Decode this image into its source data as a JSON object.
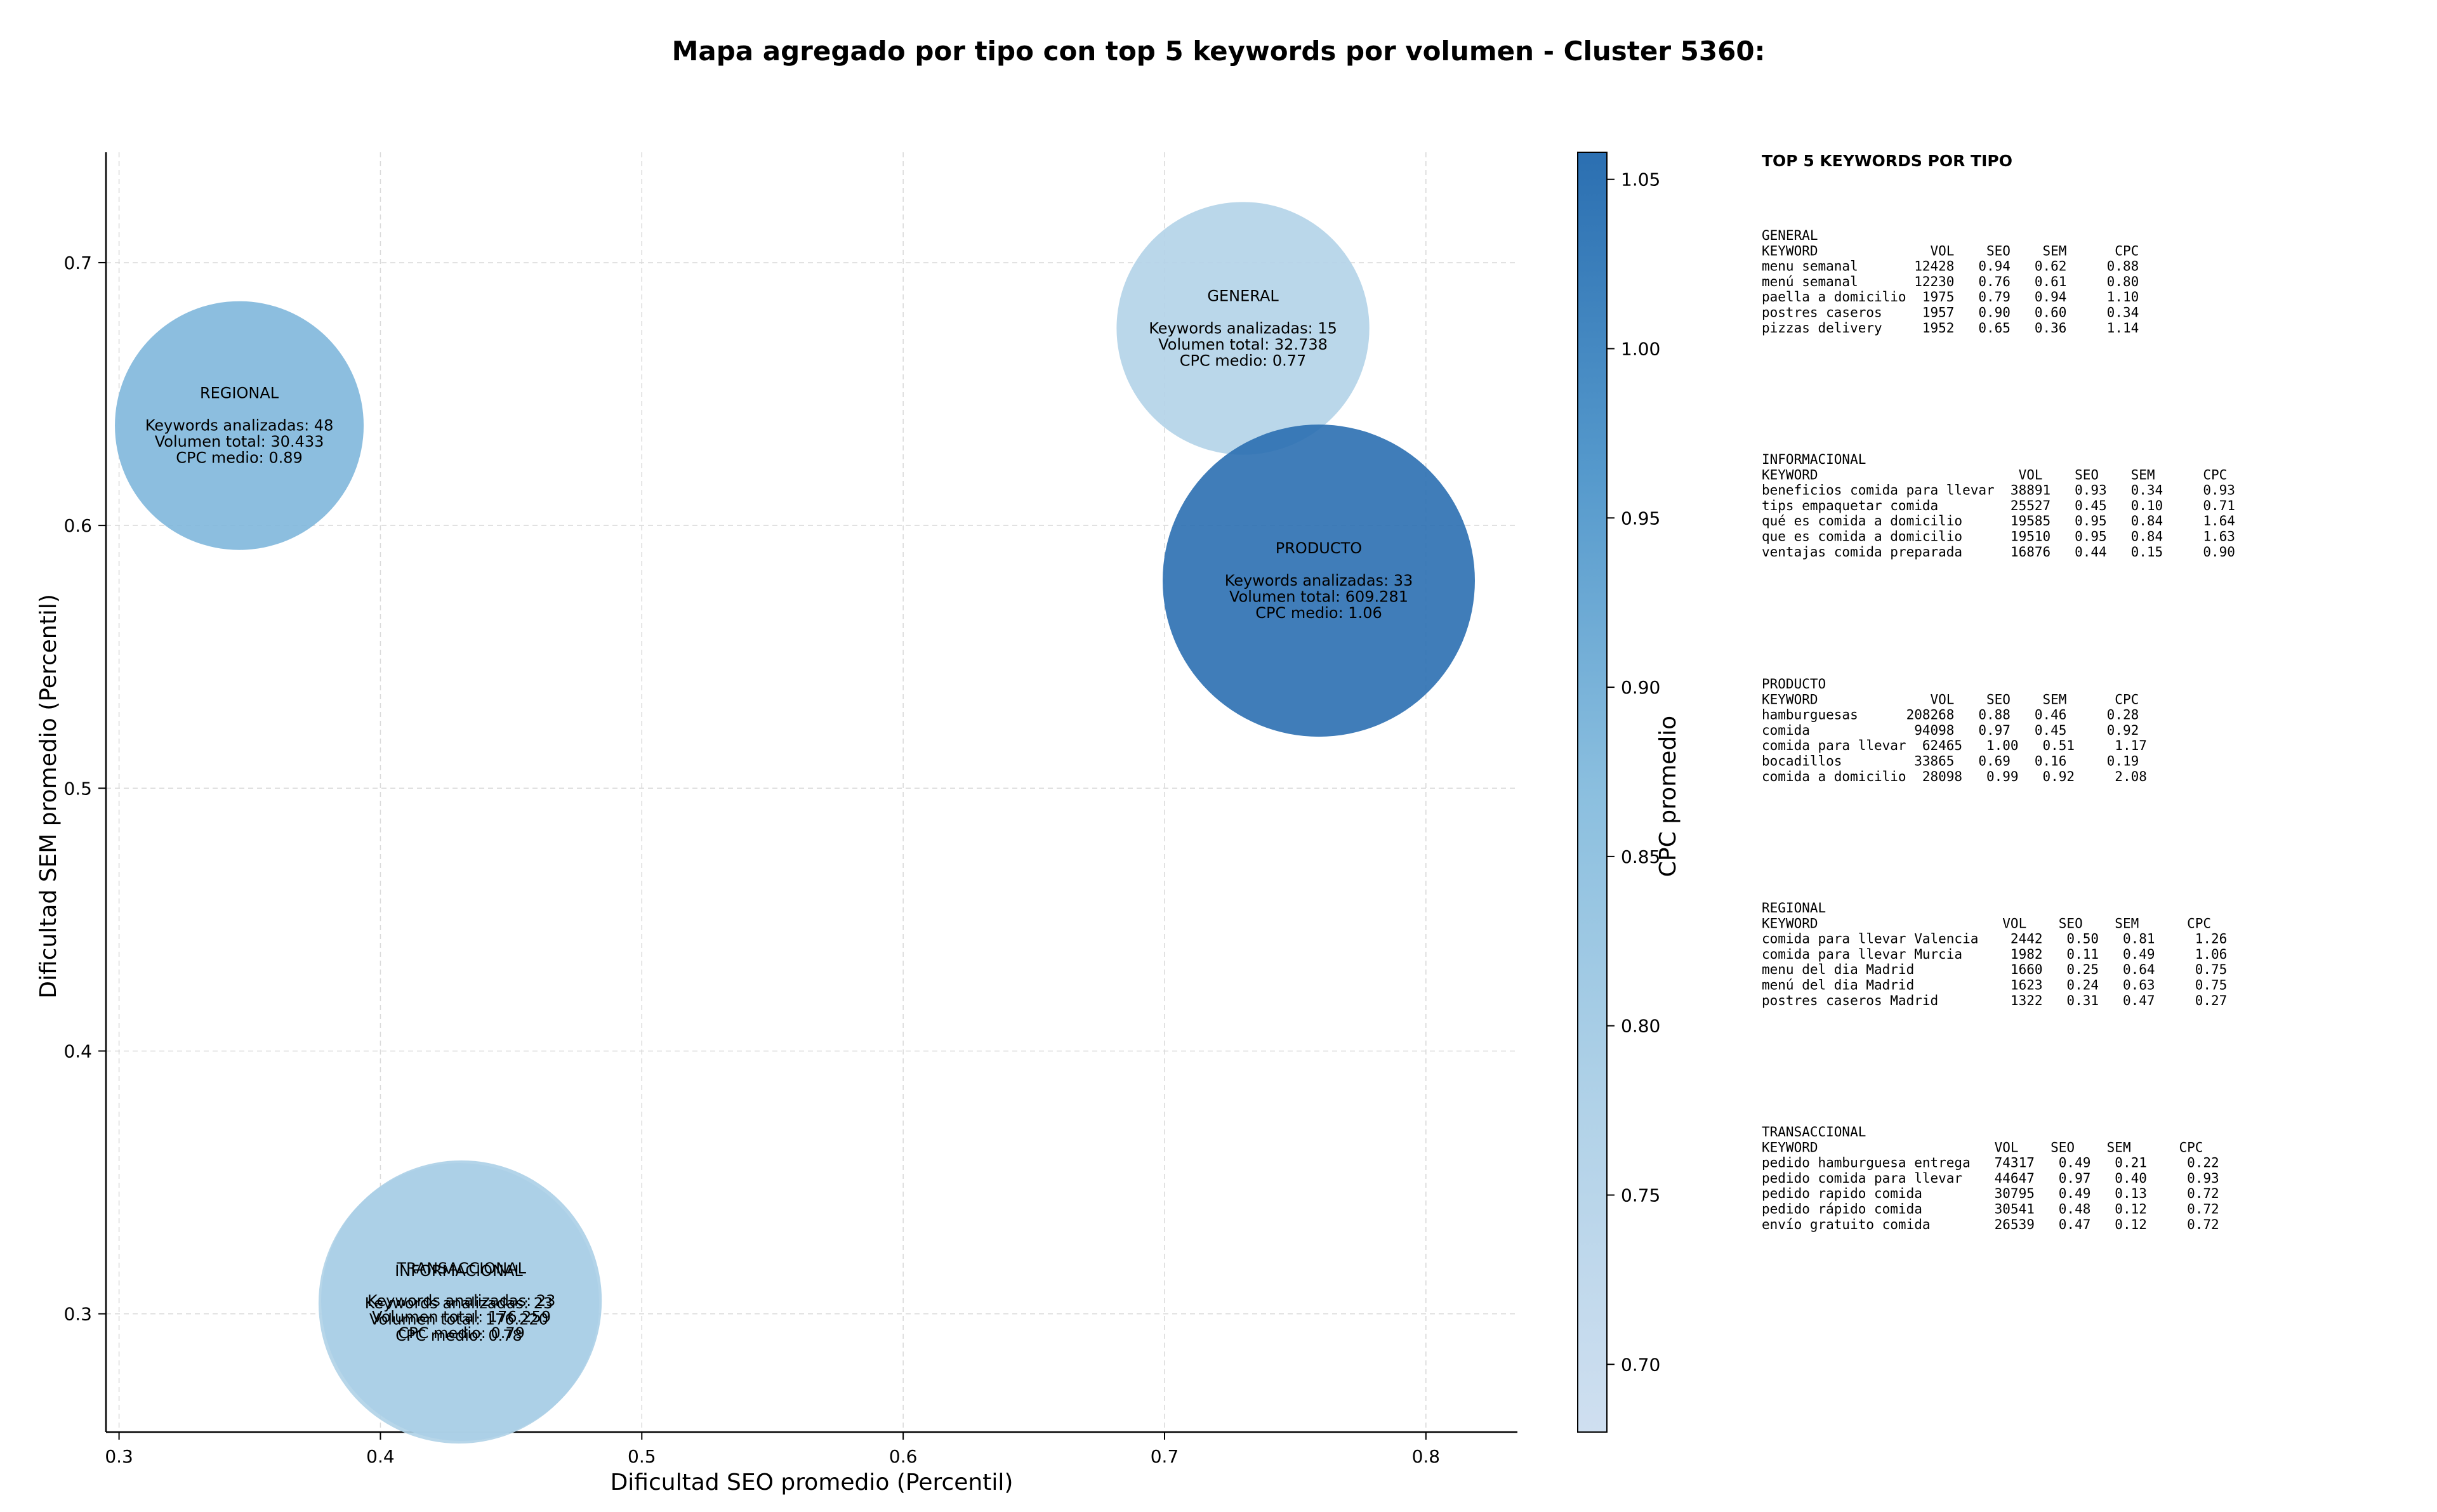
{
  "chart_data": {
    "type": "scatter",
    "title": "Mapa agregado por tipo con top 5 keywords por volumen - Cluster 5360:",
    "xlabel": "Dificultad SEO promedio (Percentil)",
    "ylabel": "Dificultad SEM promedio (Percentil)",
    "xlim": [
      0.295,
      0.835
    ],
    "ylim": [
      0.255,
      0.742
    ],
    "xticks": [
      0.3,
      0.4,
      0.5,
      0.6,
      0.7,
      0.8
    ],
    "xtick_labels": [
      "0.3",
      "0.4",
      "0.5",
      "0.6",
      "0.7",
      "0.8"
    ],
    "yticks": [
      0.3,
      0.4,
      0.5,
      0.6,
      0.7
    ],
    "ytick_labels": [
      "0.3",
      "0.4",
      "0.5",
      "0.6",
      "0.7"
    ],
    "grid": true,
    "colorbar": {
      "label": "CPC promedio",
      "range": [
        0.68,
        1.058
      ],
      "ticks": [
        0.7,
        0.75,
        0.8,
        0.85,
        0.9,
        0.95,
        1.0,
        1.05
      ],
      "tick_labels": [
        "0.70",
        "0.75",
        "0.80",
        "0.85",
        "0.90",
        "0.95",
        "1.00",
        "1.05"
      ]
    },
    "points": [
      {
        "name": "REGIONAL",
        "x": 0.346,
        "y": 0.638,
        "keywords": 48,
        "volume": 30433,
        "cpc": 0.89,
        "label_lines": [
          "REGIONAL",
          "",
          "Keywords analizadas: 48",
          "Volumen total: 30.433",
          "CPC medio: 0.89"
        ]
      },
      {
        "name": "GENERAL",
        "x": 0.73,
        "y": 0.675,
        "keywords": 15,
        "volume": 32738,
        "cpc": 0.77,
        "label_lines": [
          "GENERAL",
          "",
          "Keywords analizadas: 15",
          "Volumen total: 32.738",
          "CPC medio: 0.77"
        ]
      },
      {
        "name": "PRODUCTO",
        "x": 0.759,
        "y": 0.579,
        "keywords": 33,
        "volume": 609281,
        "cpc": 1.06,
        "label_lines": [
          "PRODUCTO",
          "",
          "Keywords analizadas: 33",
          "Volumen total: 609.281",
          "CPC medio: 1.06"
        ]
      },
      {
        "name": "INFORMACIONAL",
        "x": 0.43,
        "y": 0.304,
        "keywords": 23,
        "volume": 176220,
        "cpc": 0.78,
        "label_lines": [
          "INFORMACIONAL",
          "",
          "Keywords analizadas: 23",
          "Volumen total: 176.220",
          "CPC medio: 0.78"
        ]
      },
      {
        "name": "TRANSACCIONAL",
        "x": 0.431,
        "y": 0.305,
        "keywords": 23,
        "volume": 176259,
        "cpc": 0.79,
        "label_lines": [
          "TRANSACCIONAL",
          "",
          "Keywords analizadas: 23",
          "Volumen total: 176.259",
          "CPC medio: 0.79"
        ]
      }
    ]
  },
  "side_panel": {
    "title": "TOP 5 KEYWORDS POR TIPO",
    "sections": [
      {
        "name": "GENERAL",
        "lines": [
          "GENERAL",
          "KEYWORD              VOL    SEO    SEM      CPC",
          "menu semanal       12428   0.94   0.62     0.88",
          "menú semanal       12230   0.76   0.61     0.80",
          "paella a domicilio  1975   0.79   0.94     1.10",
          "postres caseros     1957   0.90   0.60     0.34",
          "pizzas delivery     1952   0.65   0.36     1.14"
        ]
      },
      {
        "name": "INFORMACIONAL",
        "lines": [
          "INFORMACIONAL",
          "KEYWORD                         VOL    SEO    SEM      CPC",
          "beneficios comida para llevar  38891   0.93   0.34     0.93",
          "tips empaquetar comida         25527   0.45   0.10     0.71",
          "qué es comida a domicilio      19585   0.95   0.84     1.64",
          "que es comida a domicilio      19510   0.95   0.84     1.63",
          "ventajas comida preparada      16876   0.44   0.15     0.90"
        ]
      },
      {
        "name": "PRODUCTO",
        "lines": [
          "PRODUCTO",
          "KEYWORD              VOL    SEO    SEM      CPC",
          "hamburguesas      208268   0.88   0.46     0.28",
          "comida             94098   0.97   0.45     0.92",
          "comida para llevar  62465   1.00   0.51     1.17",
          "bocadillos         33865   0.69   0.16     0.19",
          "comida a domicilio  28098   0.99   0.92     2.08"
        ]
      },
      {
        "name": "REGIONAL",
        "lines": [
          "REGIONAL",
          "KEYWORD                       VOL    SEO    SEM      CPC",
          "comida para llevar Valencia    2442   0.50   0.81     1.26",
          "comida para llevar Murcia      1982   0.11   0.49     1.06",
          "menu del dia Madrid            1660   0.25   0.64     0.75",
          "menú del dia Madrid            1623   0.24   0.63     0.75",
          "postres caseros Madrid         1322   0.31   0.47     0.27"
        ]
      },
      {
        "name": "TRANSACCIONAL",
        "lines": [
          "TRANSACCIONAL",
          "KEYWORD                      VOL    SEO    SEM      CPC",
          "pedido hamburguesa entrega   74317   0.49   0.21     0.22",
          "pedido comida para llevar    44647   0.97   0.40     0.93",
          "pedido rapido comida         30795   0.49   0.13     0.72",
          "pedido rápido comida         30541   0.48   0.12     0.72",
          "envío gratuito comida        26539   0.47   0.12     0.72"
        ]
      }
    ]
  }
}
